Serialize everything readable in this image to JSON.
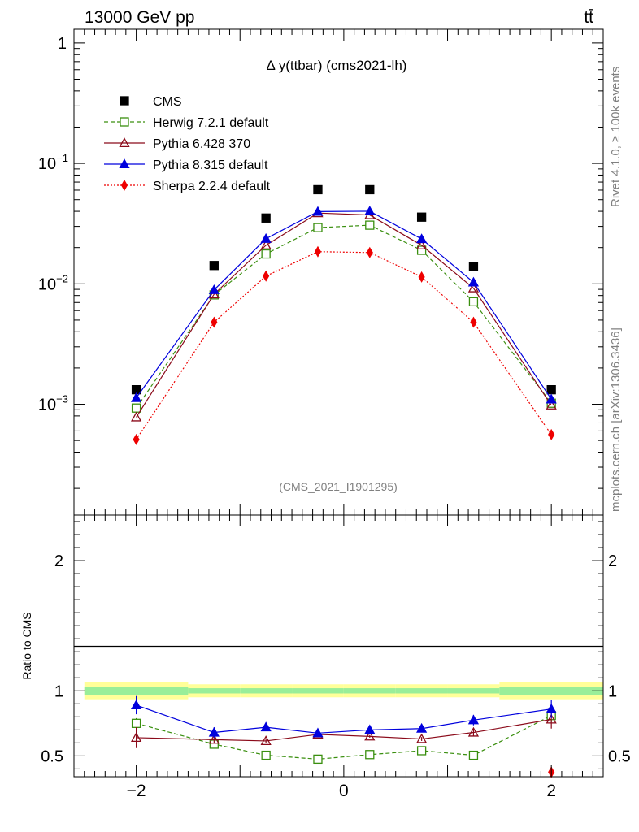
{
  "header": {
    "energy_label": "13000 GeV pp",
    "process_label": "tt̄"
  },
  "side": {
    "rivet_label": "Rivet 4.1.0, ≥ 100k events",
    "source_label": "mcplots.cern.ch [arXiv:1306.3436]"
  },
  "chart_data": [
    {
      "type": "line",
      "panel": "main",
      "title": "Δ y(ttbar) (cms2021-lh)",
      "analysis_label": "(CMS_2021_I1901295)",
      "yscale": "log",
      "ylim": [
        0.00012,
        1.3
      ],
      "xlim": [
        -2.6,
        2.5
      ],
      "y_tick_labels": [
        {
          "value": 1,
          "base": "1",
          "exp": ""
        },
        {
          "value": 0.1,
          "base": "10",
          "exp": "−1"
        },
        {
          "value": 0.01,
          "base": "10",
          "exp": "−2"
        },
        {
          "value": 0.001,
          "base": "10",
          "exp": "−3"
        }
      ],
      "x": [
        -2.0,
        -1.25,
        -0.75,
        -0.25,
        0.25,
        0.75,
        1.25,
        2.0
      ],
      "series": [
        {
          "name": "CMS",
          "color": "#000000",
          "marker": "filled-square",
          "line": "none",
          "values": [
            0.00132,
            0.0142,
            0.0352,
            0.0605,
            0.0605,
            0.0358,
            0.014,
            0.00132
          ]
        },
        {
          "name": "Herwig 7.2.1 default",
          "color": "#3a8f0f",
          "marker": "open-square",
          "line": "dashed",
          "values": [
            0.00093,
            0.0081,
            0.0177,
            0.0293,
            0.0307,
            0.019,
            0.0071,
            0.00102
          ]
        },
        {
          "name": "Pythia 6.428 370",
          "color": "#8b0a1a",
          "marker": "open-triangle",
          "line": "solid",
          "values": [
            0.00078,
            0.0082,
            0.0209,
            0.0387,
            0.0373,
            0.0209,
            0.0092,
            0.00098
          ]
        },
        {
          "name": "Pythia 8.315 default",
          "color": "#0000dd",
          "marker": "filled-triangle",
          "line": "solid",
          "values": [
            0.00113,
            0.0089,
            0.0237,
            0.0398,
            0.0401,
            0.0236,
            0.0103,
            0.0011
          ]
        },
        {
          "name": "Sherpa 2.2.4 default",
          "color": "#ee0000",
          "marker": "filled-diamond",
          "line": "dotted",
          "values": [
            0.00051,
            0.0048,
            0.0116,
            0.0185,
            0.0182,
            0.0114,
            0.0048,
            0.00056
          ]
        }
      ]
    },
    {
      "type": "line",
      "panel": "ratio",
      "ylabel": "Ratio to CMS",
      "ylim": [
        0.34,
        2.35
      ],
      "xlim": [
        -2.6,
        2.5
      ],
      "y_tick_labels": [
        "0.5",
        "1",
        "2"
      ],
      "x_tick_labels": [
        "−2",
        "0",
        "2"
      ],
      "x_tick_values": [
        -2,
        0,
        2
      ],
      "x": [
        -2.0,
        -1.25,
        -0.75,
        -0.25,
        0.25,
        0.75,
        1.25,
        2.0
      ],
      "bands": {
        "bin_edges": [
          -2.5,
          -1.5,
          -1.0,
          -0.5,
          0.0,
          0.5,
          1.0,
          1.5,
          2.5
        ],
        "outer_halfwidth": [
          0.065,
          0.05,
          0.05,
          0.05,
          0.05,
          0.05,
          0.05,
          0.065
        ],
        "inner_halfwidth": [
          0.03,
          0.02,
          0.02,
          0.02,
          0.02,
          0.02,
          0.02,
          0.03
        ],
        "outer_color": "#ffff99",
        "inner_color": "#99ee99"
      },
      "series": [
        {
          "name": "Herwig 7.2.1 default",
          "color": "#3a8f0f",
          "marker": "open-square",
          "line": "dashed",
          "values": [
            0.75,
            0.59,
            0.505,
            0.475,
            0.51,
            0.54,
            0.505,
            0.81
          ],
          "errors": [
            0.04,
            0.03,
            0.015,
            0.01,
            0.012,
            0.015,
            0.03,
            0.05
          ]
        },
        {
          "name": "Pythia 6.428 370",
          "color": "#8b0a1a",
          "marker": "open-triangle",
          "line": "solid",
          "values": [
            0.64,
            0.625,
            0.615,
            0.665,
            0.65,
            0.63,
            0.68,
            0.78
          ],
          "errors": [
            0.08,
            0.03,
            0.015,
            0.01,
            0.01,
            0.015,
            0.03,
            0.07
          ]
        },
        {
          "name": "Pythia 8.315 default",
          "color": "#0000dd",
          "marker": "filled-triangle",
          "line": "solid",
          "values": [
            0.89,
            0.68,
            0.72,
            0.675,
            0.7,
            0.71,
            0.775,
            0.86
          ],
          "errors": [
            0.07,
            0.04,
            0.02,
            0.01,
            0.01,
            0.02,
            0.04,
            0.07
          ]
        },
        {
          "name": "Sherpa 2.2.4 default",
          "color": "#ee0000",
          "marker": "filled-diamond",
          "line": "dotted",
          "values": [
            null,
            null,
            null,
            null,
            null,
            null,
            null,
            0.375
          ],
          "errors": [
            0,
            0,
            0,
            0,
            0,
            0,
            0,
            0.04
          ]
        }
      ]
    }
  ]
}
